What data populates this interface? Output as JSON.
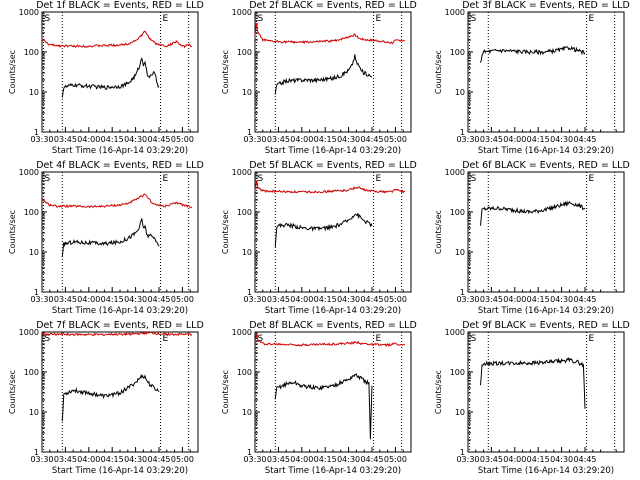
{
  "colors": {
    "events": "#000000",
    "lld": "#d00000",
    "background": "#ffffff"
  },
  "chart_data": [
    {
      "type": "line",
      "title": "Det 1f BLACK = Events, RED = LLD",
      "xlabel": "Start Time (16-Apr-14 03:29:20)",
      "ylabel": "Counts/sec",
      "y_scale": "log",
      "ylim": [
        1,
        1000
      ],
      "x_ticks": [
        "03:30",
        "03:45",
        "04:00",
        "04:15",
        "04:30",
        "04:45",
        "05:00"
      ],
      "y_ticks": [
        "1",
        "10",
        "100",
        "1000"
      ],
      "markers": [
        "S",
        "E"
      ],
      "series": [
        {
          "color": "lld",
          "x": [
            0,
            2,
            5,
            10,
            20,
            30,
            40,
            50,
            55,
            60,
            64,
            66,
            68,
            70,
            73,
            76,
            80,
            84,
            86,
            88,
            90,
            92,
            94,
            96
          ],
          "y": [
            210,
            180,
            150,
            145,
            140,
            140,
            145,
            150,
            160,
            195,
            260,
            330,
            250,
            200,
            160,
            150,
            140,
            165,
            185,
            160,
            135,
            140,
            155,
            140
          ]
        },
        {
          "color": "events",
          "x": [
            13,
            14,
            20,
            30,
            40,
            50,
            55,
            60,
            62,
            64,
            65,
            66,
            67,
            68,
            70,
            72,
            74,
            75
          ],
          "y": [
            8,
            13,
            15,
            14,
            13,
            14,
            16,
            26,
            40,
            70,
            50,
            60,
            35,
            22,
            28,
            30,
            16,
            14
          ]
        }
      ]
    },
    {
      "type": "line",
      "title": "Det 2f BLACK = Events, RED = LLD",
      "xlabel": "Start Time (16-Apr-14 03:29:20)",
      "ylabel": "Counts/sec",
      "y_scale": "log",
      "ylim": [
        1,
        1000
      ],
      "x_ticks": [
        "03:30",
        "03:45",
        "04:00",
        "04:15",
        "04:30",
        "04:45",
        "05:00"
      ],
      "y_ticks": [
        "1",
        "10",
        "100",
        "1000"
      ],
      "markers": [
        "S",
        "E"
      ],
      "series": [
        {
          "color": "lld",
          "x": [
            0,
            1,
            2,
            5,
            10,
            20,
            30,
            40,
            50,
            55,
            60,
            64,
            66,
            68,
            72,
            76,
            80,
            84,
            88,
            90,
            94,
            96
          ],
          "y": [
            260,
            500,
            300,
            200,
            185,
            180,
            175,
            180,
            190,
            210,
            240,
            270,
            230,
            210,
            200,
            195,
            190,
            175,
            170,
            190,
            200,
            185
          ]
        },
        {
          "color": "events",
          "x": [
            13,
            14,
            20,
            30,
            40,
            50,
            55,
            60,
            62,
            64,
            65,
            66,
            68,
            70,
            72,
            74,
            75
          ],
          "y": [
            9,
            15,
            19,
            20,
            20,
            22,
            26,
            35,
            45,
            80,
            55,
            50,
            35,
            30,
            28,
            25,
            24
          ]
        }
      ]
    },
    {
      "type": "line",
      "title": "Det 3f BLACK = Events, RED = LLD",
      "xlabel": "Start Time (16-Apr-14 03:29:20)",
      "ylabel": "Counts/sec",
      "y_scale": "log",
      "ylim": [
        1,
        1000
      ],
      "x_ticks": [
        "03:30",
        "03:45",
        "04:00",
        "04:15",
        "04:30",
        "04:45"
      ],
      "y_ticks": [
        "1",
        "10",
        "100",
        "1000"
      ],
      "markers": [
        "S",
        "E"
      ],
      "series": [
        {
          "color": "events",
          "x": [
            8,
            9,
            10,
            20,
            30,
            40,
            50,
            60,
            65,
            70,
            75
          ],
          "y": [
            50,
            90,
            100,
            110,
            105,
            100,
            100,
            115,
            130,
            110,
            95
          ]
        }
      ]
    },
    {
      "type": "line",
      "title": "Det 4f BLACK = Events, RED = LLD",
      "xlabel": "Start Time (16-Apr-14 03:29:20)",
      "ylabel": "Counts/sec",
      "y_scale": "log",
      "ylim": [
        1,
        1000
      ],
      "x_ticks": [
        "03:30",
        "03:45",
        "04:00",
        "04:15",
        "04:30",
        "04:45",
        "05:00"
      ],
      "y_ticks": [
        "1",
        "10",
        "100",
        "1000"
      ],
      "markers": [
        "S",
        "E"
      ],
      "series": [
        {
          "color": "lld",
          "x": [
            0,
            2,
            5,
            10,
            20,
            30,
            40,
            50,
            55,
            60,
            64,
            66,
            68,
            70,
            73,
            76,
            80,
            84,
            88,
            90,
            94,
            96
          ],
          "y": [
            210,
            180,
            150,
            140,
            140,
            135,
            140,
            150,
            165,
            200,
            250,
            270,
            230,
            180,
            150,
            145,
            140,
            160,
            170,
            150,
            140,
            135
          ]
        },
        {
          "color": "events",
          "x": [
            13,
            14,
            20,
            30,
            40,
            50,
            55,
            60,
            62,
            64,
            65,
            66,
            67,
            68,
            70,
            72,
            74,
            75
          ],
          "y": [
            7,
            16,
            18,
            17,
            16,
            18,
            22,
            30,
            38,
            65,
            40,
            45,
            30,
            25,
            25,
            22,
            18,
            14
          ]
        }
      ]
    },
    {
      "type": "line",
      "title": "Det 5f BLACK = Events, RED = LLD",
      "xlabel": "Start Time (16-Apr-14 03:29:20)",
      "ylabel": "Counts/sec",
      "y_scale": "log",
      "ylim": [
        1,
        1000
      ],
      "x_ticks": [
        "03:30",
        "03:45",
        "04:00",
        "04:15",
        "04:30",
        "04:45",
        "05:00"
      ],
      "y_ticks": [
        "1",
        "10",
        "100",
        "1000"
      ],
      "markers": [
        "S",
        "E"
      ],
      "series": [
        {
          "color": "lld",
          "x": [
            0,
            1,
            2,
            5,
            10,
            20,
            30,
            40,
            50,
            55,
            60,
            64,
            66,
            68,
            72,
            76,
            80,
            84,
            88,
            90,
            94,
            96
          ],
          "y": [
            350,
            600,
            400,
            340,
            330,
            320,
            315,
            320,
            330,
            340,
            360,
            400,
            420,
            380,
            340,
            330,
            325,
            320,
            330,
            360,
            330,
            320
          ]
        },
        {
          "color": "events",
          "x": [
            13,
            14,
            20,
            25,
            30,
            40,
            50,
            55,
            60,
            62,
            64,
            66,
            68,
            70,
            72,
            74,
            75
          ],
          "y": [
            15,
            45,
            48,
            45,
            40,
            38,
            42,
            50,
            62,
            75,
            90,
            85,
            70,
            60,
            55,
            50,
            45
          ]
        }
      ]
    },
    {
      "type": "line",
      "title": "Det 6f BLACK = Events, RED = LLD",
      "xlabel": "Start Time (16-Apr-14 03:29:20)",
      "ylabel": "Counts/sec",
      "y_scale": "log",
      "ylim": [
        1,
        1000
      ],
      "x_ticks": [
        "03:30",
        "03:45",
        "04:00",
        "04:15",
        "04:30",
        "04:45"
      ],
      "y_ticks": [
        "1",
        "10",
        "100",
        "1000"
      ],
      "markers": [
        "S",
        "E"
      ],
      "series": [
        {
          "color": "events",
          "x": [
            8,
            9,
            10,
            20,
            30,
            40,
            50,
            60,
            65,
            68,
            72,
            75
          ],
          "y": [
            45,
            110,
            120,
            125,
            110,
            100,
            115,
            150,
            170,
            160,
            140,
            120
          ]
        }
      ]
    },
    {
      "type": "line",
      "title": "Det 7f BLACK = Events, RED = LLD",
      "xlabel": "Start Time (16-Apr-14 03:29:20)",
      "ylabel": "Counts/sec",
      "y_scale": "log",
      "ylim": [
        1,
        1000
      ],
      "x_ticks": [
        "03:30",
        "03:45",
        "04:00",
        "04:15",
        "04:30",
        "04:45",
        "05:00"
      ],
      "y_ticks": [
        "1",
        "10",
        "100",
        "1000"
      ],
      "markers": [
        "S",
        "E"
      ],
      "series": [
        {
          "color": "lld",
          "x": [
            0,
            5,
            10,
            20,
            30,
            40,
            50,
            60,
            65,
            70,
            75,
            80,
            85,
            90,
            96
          ],
          "y": [
            900,
            880,
            880,
            870,
            860,
            870,
            880,
            900,
            930,
            950,
            900,
            880,
            870,
            880,
            870
          ]
        },
        {
          "color": "events",
          "x": [
            13,
            14,
            20,
            30,
            40,
            50,
            55,
            60,
            62,
            64,
            66,
            68,
            70,
            72,
            74,
            75
          ],
          "y": [
            6,
            28,
            35,
            30,
            25,
            30,
            40,
            55,
            65,
            80,
            75,
            55,
            45,
            40,
            35,
            32
          ]
        }
      ]
    },
    {
      "type": "line",
      "title": "Det 8f BLACK = Events, RED = LLD",
      "xlabel": "Start Time (16-Apr-14 03:29:20)",
      "ylabel": "Counts/sec",
      "y_scale": "log",
      "ylim": [
        1,
        1000
      ],
      "x_ticks": [
        "03:30",
        "03:45",
        "04:00",
        "04:15",
        "04:30",
        "04:45",
        "05:00"
      ],
      "y_ticks": [
        "1",
        "10",
        "100",
        "1000"
      ],
      "markers": [
        "S",
        "E"
      ],
      "series": [
        {
          "color": "lld",
          "x": [
            0,
            1,
            2,
            5,
            10,
            20,
            30,
            40,
            50,
            55,
            60,
            64,
            66,
            68,
            72,
            76,
            80,
            84,
            88,
            90,
            94,
            96
          ],
          "y": [
            550,
            900,
            600,
            520,
            500,
            490,
            480,
            490,
            500,
            510,
            520,
            540,
            560,
            520,
            500,
            490,
            480,
            470,
            490,
            520,
            480,
            470
          ]
        },
        {
          "color": "events",
          "x": [
            13,
            14,
            20,
            25,
            30,
            40,
            50,
            55,
            60,
            62,
            64,
            66,
            68,
            70,
            72,
            73,
            74,
            75
          ],
          "y": [
            20,
            40,
            50,
            55,
            45,
            40,
            45,
            55,
            65,
            75,
            85,
            78,
            70,
            60,
            55,
            50,
            2,
            45
          ]
        }
      ]
    },
    {
      "type": "line",
      "title": "Det 9f BLACK = Events, RED = LLD",
      "xlabel": "Start Time (16-Apr-14 03:29:20)",
      "ylabel": "Counts/sec",
      "y_scale": "log",
      "ylim": [
        1,
        1000
      ],
      "x_ticks": [
        "03:30",
        "03:45",
        "04:00",
        "04:15",
        "04:30",
        "04:45"
      ],
      "y_ticks": [
        "1",
        "10",
        "100",
        "1000"
      ],
      "markers": [
        "S",
        "E"
      ],
      "series": [
        {
          "color": "events",
          "x": [
            8,
            9,
            10,
            20,
            30,
            40,
            50,
            60,
            65,
            70,
            74,
            75
          ],
          "y": [
            50,
            150,
            160,
            165,
            165,
            170,
            175,
            190,
            200,
            180,
            150,
            12
          ]
        }
      ]
    }
  ]
}
